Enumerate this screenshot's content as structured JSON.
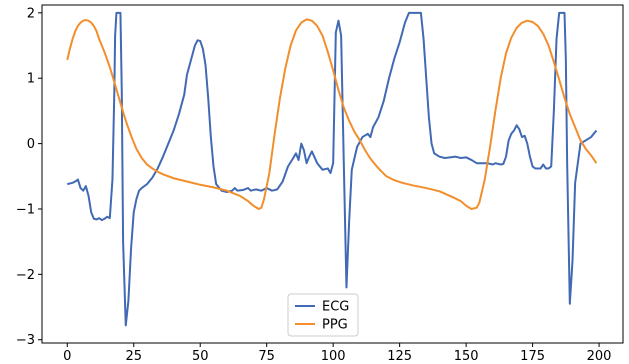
{
  "chart_data": {
    "type": "line",
    "title": "",
    "xlabel": "",
    "ylabel": "",
    "xlim": [
      -9.5,
      209
    ],
    "ylim": [
      -3.05,
      2.12
    ],
    "x_ticks": [
      0,
      25,
      50,
      75,
      100,
      125,
      150,
      175,
      200
    ],
    "y_ticks": [
      -3,
      -2,
      -1,
      0,
      1,
      2
    ],
    "grid": false,
    "legend_position": "lower-center",
    "series": [
      {
        "name": "ECG",
        "color": "#4169b4",
        "points": [
          [
            0,
            -0.62
          ],
          [
            2,
            -0.6
          ],
          [
            3,
            -0.58
          ],
          [
            4,
            -0.55
          ],
          [
            5,
            -0.68
          ],
          [
            6,
            -0.72
          ],
          [
            7,
            -0.65
          ],
          [
            8,
            -0.8
          ],
          [
            9,
            -1.05
          ],
          [
            10,
            -1.15
          ],
          [
            11,
            -1.16
          ],
          [
            12,
            -1.14
          ],
          [
            13,
            -1.17
          ],
          [
            14,
            -1.15
          ],
          [
            15,
            -1.12
          ],
          [
            16,
            -1.14
          ],
          [
            17,
            -0.55
          ],
          [
            17.7,
            0.8
          ],
          [
            18,
            1.65
          ],
          [
            18.5,
            2.0
          ],
          [
            20,
            2.0
          ],
          [
            20.5,
            0.8
          ],
          [
            21,
            -1.5
          ],
          [
            22,
            -2.78
          ],
          [
            23,
            -2.4
          ],
          [
            24,
            -1.6
          ],
          [
            25,
            -1.05
          ],
          [
            26,
            -0.85
          ],
          [
            27,
            -0.72
          ],
          [
            28,
            -0.68
          ],
          [
            30,
            -0.62
          ],
          [
            32,
            -0.52
          ],
          [
            34,
            -0.38
          ],
          [
            36,
            -0.2
          ],
          [
            38,
            0.0
          ],
          [
            40,
            0.2
          ],
          [
            42,
            0.45
          ],
          [
            44,
            0.75
          ],
          [
            45,
            1.05
          ],
          [
            46,
            1.2
          ],
          [
            47,
            1.35
          ],
          [
            48,
            1.5
          ],
          [
            49,
            1.58
          ],
          [
            50,
            1.57
          ],
          [
            51,
            1.45
          ],
          [
            52,
            1.2
          ],
          [
            53,
            0.7
          ],
          [
            54,
            0.1
          ],
          [
            55,
            -0.35
          ],
          [
            56,
            -0.62
          ],
          [
            58,
            -0.72
          ],
          [
            60,
            -0.74
          ],
          [
            62,
            -0.72
          ],
          [
            63,
            -0.68
          ],
          [
            64,
            -0.72
          ],
          [
            66,
            -0.71
          ],
          [
            68,
            -0.68
          ],
          [
            69,
            -0.72
          ],
          [
            71,
            -0.7
          ],
          [
            73,
            -0.72
          ],
          [
            75,
            -0.68
          ],
          [
            77,
            -0.72
          ],
          [
            79,
            -0.7
          ],
          [
            81,
            -0.58
          ],
          [
            83,
            -0.35
          ],
          [
            85,
            -0.22
          ],
          [
            86,
            -0.15
          ],
          [
            87,
            -0.25
          ],
          [
            88,
            0.0
          ],
          [
            89,
            -0.1
          ],
          [
            90,
            -0.3
          ],
          [
            91,
            -0.2
          ],
          [
            92,
            -0.12
          ],
          [
            94,
            -0.3
          ],
          [
            96,
            -0.4
          ],
          [
            98,
            -0.38
          ],
          [
            99,
            -0.45
          ],
          [
            100,
            -0.3
          ],
          [
            101,
            1.7
          ],
          [
            102,
            1.88
          ],
          [
            103,
            1.65
          ],
          [
            104,
            -0.3
          ],
          [
            105,
            -2.2
          ],
          [
            106,
            -1.2
          ],
          [
            107,
            -0.4
          ],
          [
            109,
            -0.05
          ],
          [
            111,
            0.1
          ],
          [
            113,
            0.15
          ],
          [
            114,
            0.1
          ],
          [
            115,
            0.25
          ],
          [
            117,
            0.4
          ],
          [
            119,
            0.65
          ],
          [
            121,
            1.0
          ],
          [
            123,
            1.3
          ],
          [
            125,
            1.55
          ],
          [
            127,
            1.85
          ],
          [
            128.5,
            2.0
          ],
          [
            133,
            2.0
          ],
          [
            134,
            1.6
          ],
          [
            135,
            1.0
          ],
          [
            136,
            0.4
          ],
          [
            137,
            0.0
          ],
          [
            138,
            -0.15
          ],
          [
            140,
            -0.2
          ],
          [
            142,
            -0.22
          ],
          [
            144,
            -0.21
          ],
          [
            146,
            -0.2
          ],
          [
            148,
            -0.22
          ],
          [
            150,
            -0.21
          ],
          [
            152,
            -0.25
          ],
          [
            154,
            -0.3
          ],
          [
            156,
            -0.3
          ],
          [
            158,
            -0.3
          ],
          [
            160,
            -0.32
          ],
          [
            161,
            -0.3
          ],
          [
            163,
            -0.32
          ],
          [
            164,
            -0.31
          ],
          [
            165,
            -0.2
          ],
          [
            166,
            0.05
          ],
          [
            167,
            0.15
          ],
          [
            168,
            0.2
          ],
          [
            169,
            0.28
          ],
          [
            170,
            0.22
          ],
          [
            171,
            0.1
          ],
          [
            172,
            0.12
          ],
          [
            173,
            0.0
          ],
          [
            174,
            -0.2
          ],
          [
            175,
            -0.35
          ],
          [
            176,
            -0.38
          ],
          [
            178,
            -0.38
          ],
          [
            179,
            -0.32
          ],
          [
            180,
            -0.38
          ],
          [
            181,
            -0.38
          ],
          [
            182,
            -0.35
          ],
          [
            183,
            0.5
          ],
          [
            184,
            1.6
          ],
          [
            185,
            2.0
          ],
          [
            187,
            2.0
          ],
          [
            187.5,
            1.3
          ],
          [
            188,
            -0.3
          ],
          [
            189,
            -2.45
          ],
          [
            190,
            -1.8
          ],
          [
            191,
            -0.6
          ],
          [
            193,
            0.0
          ],
          [
            195,
            0.05
          ],
          [
            197,
            0.1
          ],
          [
            199,
            0.2
          ]
        ]
      },
      {
        "name": "PPG",
        "color": "#f28e2b",
        "points": [
          [
            0,
            1.28
          ],
          [
            1,
            1.45
          ],
          [
            2,
            1.6
          ],
          [
            3,
            1.72
          ],
          [
            4,
            1.8
          ],
          [
            5,
            1.85
          ],
          [
            6,
            1.88
          ],
          [
            7,
            1.89
          ],
          [
            8,
            1.88
          ],
          [
            9,
            1.85
          ],
          [
            10,
            1.8
          ],
          [
            11,
            1.72
          ],
          [
            12,
            1.6
          ],
          [
            14,
            1.4
          ],
          [
            16,
            1.17
          ],
          [
            18,
            0.9
          ],
          [
            20,
            0.62
          ],
          [
            22,
            0.35
          ],
          [
            24,
            0.12
          ],
          [
            26,
            -0.08
          ],
          [
            28,
            -0.22
          ],
          [
            30,
            -0.32
          ],
          [
            32,
            -0.38
          ],
          [
            34,
            -0.43
          ],
          [
            36,
            -0.47
          ],
          [
            40,
            -0.53
          ],
          [
            45,
            -0.58
          ],
          [
            50,
            -0.63
          ],
          [
            55,
            -0.67
          ],
          [
            60,
            -0.72
          ],
          [
            65,
            -0.8
          ],
          [
            68,
            -0.88
          ],
          [
            70,
            -0.95
          ],
          [
            72,
            -1.0
          ],
          [
            73,
            -0.98
          ],
          [
            74,
            -0.85
          ],
          [
            76,
            -0.45
          ],
          [
            78,
            0.15
          ],
          [
            80,
            0.7
          ],
          [
            82,
            1.15
          ],
          [
            84,
            1.5
          ],
          [
            86,
            1.73
          ],
          [
            88,
            1.85
          ],
          [
            90,
            1.9
          ],
          [
            92,
            1.88
          ],
          [
            94,
            1.8
          ],
          [
            96,
            1.65
          ],
          [
            98,
            1.4
          ],
          [
            100,
            1.12
          ],
          [
            102,
            0.82
          ],
          [
            104,
            0.55
          ],
          [
            106,
            0.35
          ],
          [
            108,
            0.18
          ],
          [
            110,
            0.05
          ],
          [
            112,
            -0.1
          ],
          [
            114,
            -0.23
          ],
          [
            116,
            -0.33
          ],
          [
            118,
            -0.42
          ],
          [
            120,
            -0.5
          ],
          [
            123,
            -0.56
          ],
          [
            126,
            -0.6
          ],
          [
            130,
            -0.64
          ],
          [
            135,
            -0.68
          ],
          [
            140,
            -0.73
          ],
          [
            145,
            -0.82
          ],
          [
            148,
            -0.88
          ],
          [
            150,
            -0.95
          ],
          [
            152,
            -1.0
          ],
          [
            154,
            -0.98
          ],
          [
            155,
            -0.9
          ],
          [
            157,
            -0.55
          ],
          [
            159,
            -0.05
          ],
          [
            161,
            0.5
          ],
          [
            163,
            1.0
          ],
          [
            165,
            1.38
          ],
          [
            167,
            1.62
          ],
          [
            169,
            1.77
          ],
          [
            171,
            1.85
          ],
          [
            173,
            1.88
          ],
          [
            175,
            1.86
          ],
          [
            177,
            1.8
          ],
          [
            179,
            1.68
          ],
          [
            181,
            1.5
          ],
          [
            183,
            1.25
          ],
          [
            185,
            0.98
          ],
          [
            187,
            0.7
          ],
          [
            189,
            0.45
          ],
          [
            191,
            0.25
          ],
          [
            193,
            0.05
          ],
          [
            195,
            -0.08
          ],
          [
            197,
            -0.18
          ],
          [
            199,
            -0.3
          ]
        ]
      }
    ]
  }
}
